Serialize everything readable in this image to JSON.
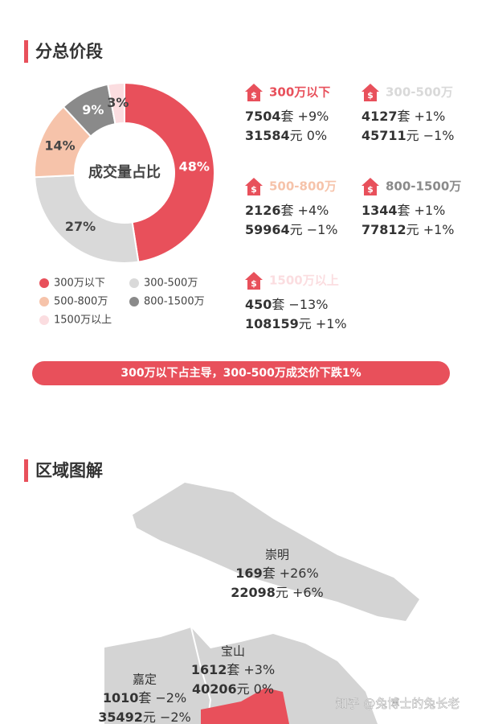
{
  "section1": {
    "title": "分总价段"
  },
  "chart_data": {
    "type": "donut",
    "center_label": "成交量占比",
    "categories": [
      "300万以下",
      "300-500万",
      "500-800万",
      "800-1500万",
      "1500万以上"
    ],
    "values": [
      48,
      27,
      14,
      9,
      3
    ],
    "value_labels": [
      "48%",
      "27%",
      "14%",
      "9%",
      "3%"
    ],
    "colors": [
      "#e8505b",
      "#d9d9d9",
      "#f6c3aa",
      "#8a8a8a",
      "#fbdde0"
    ],
    "label_colors": [
      "#ffffff",
      "#444444",
      "#444444",
      "#ffffff",
      "#444444"
    ]
  },
  "stats": [
    {
      "name": "300万以下",
      "units": 7504,
      "units_unit": "套",
      "units_change": "+9%",
      "price": 31584,
      "price_unit": "元",
      "price_change": "0%"
    },
    {
      "name": "300-500万",
      "units": 4127,
      "units_unit": "套",
      "units_change": "+1%",
      "price": 45711,
      "price_unit": "元",
      "price_change": "−1%"
    },
    {
      "name": "500-800万",
      "units": 2126,
      "units_unit": "套",
      "units_change": "+4%",
      "price": 59964,
      "price_unit": "元",
      "price_change": "−1%"
    },
    {
      "name": "800-1500万",
      "units": 1344,
      "units_unit": "套",
      "units_change": "+1%",
      "price": 77812,
      "price_unit": "元",
      "price_change": "+1%"
    },
    {
      "name": "1500万以上",
      "units": 450,
      "units_unit": "套",
      "units_change": "−13%",
      "price": 108159,
      "price_unit": "元",
      "price_change": "+1%"
    }
  ],
  "banner": "300万以下占主导，300-500万成交价下跌1%",
  "section2": {
    "title": "区域图解"
  },
  "map": {
    "regions": [
      {
        "name": "崇明",
        "units": 169,
        "units_unit": "套",
        "units_change": "+26%",
        "price": 22098,
        "price_unit": "元",
        "price_change": "+6%"
      },
      {
        "name": "宝山",
        "units": 1612,
        "units_unit": "套",
        "units_change": "+3%",
        "price": 40206,
        "price_unit": "元",
        "price_change": "0%"
      },
      {
        "name": "嘉定",
        "units": 1010,
        "units_unit": "套",
        "units_change": "−2%",
        "price": 35492,
        "price_unit": "元",
        "price_change": "−2%"
      }
    ]
  },
  "watermark": "知乎 @兔博士的兔长老"
}
